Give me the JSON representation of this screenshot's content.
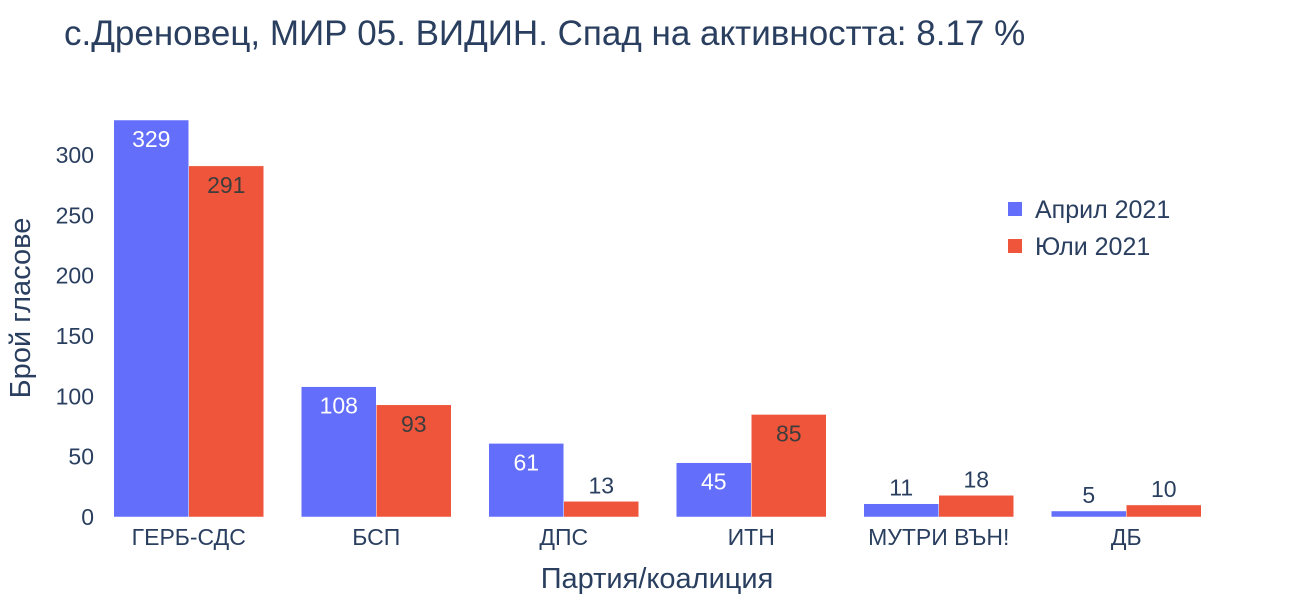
{
  "title": "с.Дреновец, МИР 05. ВИДИН. Спад на активността: 8.17  %",
  "colors": {
    "april": "#636efa",
    "july": "#ef553b",
    "text": "#2a3f5f"
  },
  "chart_data": {
    "type": "bar",
    "title": "с.Дреновец, МИР 05. ВИДИН. Спад на активността: 8.17  %",
    "xlabel": "Партия/коалиция",
    "ylabel": "Брой гласове",
    "categories": [
      "ГЕРБ-СДС",
      "БСП",
      "ДПС",
      "ИТН",
      "МУТРИ ВЪН!",
      "ДБ"
    ],
    "series": [
      {
        "name": "Април 2021",
        "values": [
          329,
          108,
          61,
          45,
          11,
          5
        ]
      },
      {
        "name": "Юли 2021",
        "values": [
          291,
          93,
          13,
          85,
          18,
          10
        ]
      }
    ],
    "ylim": [
      0,
      329
    ],
    "yticks": [
      0,
      50,
      100,
      150,
      200,
      250,
      300
    ],
    "grid": false,
    "legend_position": "top-right"
  }
}
